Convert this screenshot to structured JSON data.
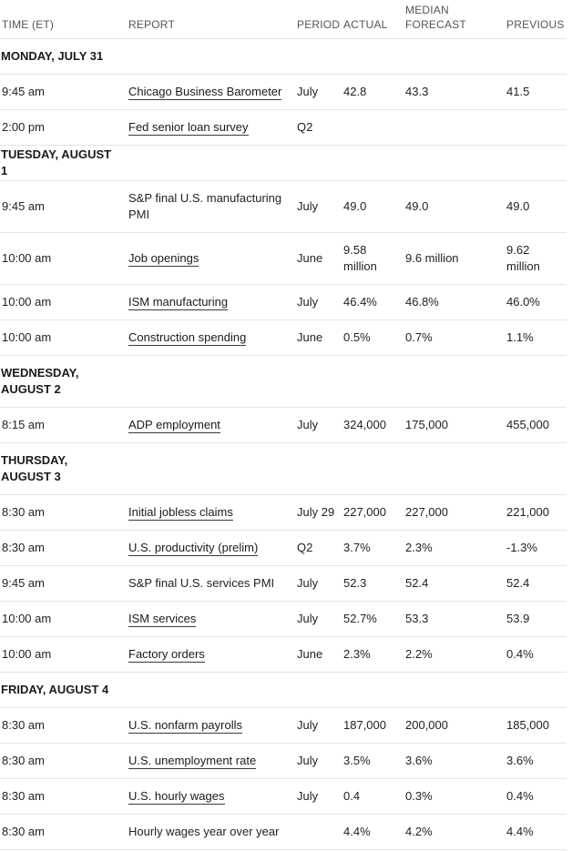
{
  "headers": {
    "time": "TIME (ET)",
    "report": "REPORT",
    "period": "PERIOD",
    "actual": "ACTUAL",
    "median_line1": "MEDIAN",
    "median_line2": "FORECAST",
    "previous": "PREVIOUS"
  },
  "days": {
    "mon": "MONDAY, JULY 31",
    "tue": "TUESDAY, AUGUST 1",
    "wed": "WEDNESDAY, AUGUST 2",
    "thu": "THURSDAY, AUGUST 3",
    "fri": "FRIDAY, AUGUST 4"
  },
  "rows": [
    {
      "time": "9:45 am",
      "report": "Chicago Business Barometer",
      "period": "July",
      "actual": "42.8",
      "median": "43.3",
      "previous": "41.5"
    },
    {
      "time": "2:00 pm",
      "report": "Fed senior loan survey",
      "period": "Q2",
      "actual": "",
      "median": "",
      "previous": ""
    },
    {
      "time": "9:45 am",
      "report": "S&P final U.S. manufacturing PMI",
      "period": "July",
      "actual": "49.0",
      "median": "49.0",
      "previous": "49.0"
    },
    {
      "time": "10:00 am",
      "report": "Job openings",
      "period": "June",
      "actual": "9.58 million",
      "median": "9.6 million",
      "previous": "9.62 million"
    },
    {
      "time": "10:00 am",
      "report": "ISM manufacturing",
      "period": "July",
      "actual": "46.4%",
      "median": "46.8%",
      "previous": "46.0%"
    },
    {
      "time": "10:00 am",
      "report": "Construction spending",
      "period": "June",
      "actual": "0.5%",
      "median": "0.7%",
      "previous": "1.1%"
    },
    {
      "time": "8:15 am",
      "report": "ADP employment",
      "period": "July",
      "actual": "324,000",
      "median": "175,000",
      "previous": "455,000"
    },
    {
      "time": "8:30 am",
      "report": "Initial jobless claims",
      "period": "July 29",
      "actual": "227,000",
      "median": "227,000",
      "previous": "221,000"
    },
    {
      "time": "8:30 am",
      "report": "U.S. productivity (prelim)",
      "period": "Q2",
      "actual": "3.7%",
      "median": "2.3%",
      "previous": "-1.3%"
    },
    {
      "time": "9:45 am",
      "report": "S&P final U.S. services PMI",
      "period": "July",
      "actual": "52.3",
      "median": "52.4",
      "previous": "52.4"
    },
    {
      "time": "10:00 am",
      "report": "ISM services",
      "period": "July",
      "actual": "52.7%",
      "median": "53.3",
      "previous": "53.9"
    },
    {
      "time": "10:00 am",
      "report": "Factory orders",
      "period": "June",
      "actual": "2.3%",
      "median": "2.2%",
      "previous": "0.4%"
    },
    {
      "time": "8:30 am",
      "report": "U.S. nonfarm payrolls",
      "period": "July",
      "actual": "187,000",
      "median": "200,000",
      "previous": "185,000"
    },
    {
      "time": "8:30 am",
      "report": "U.S. unemployment rate",
      "period": "July",
      "actual": "3.5%",
      "median": "3.6%",
      "previous": "3.6%"
    },
    {
      "time": "8:30 am",
      "report": "U.S. hourly wages",
      "period": "July",
      "actual": "0.4",
      "median": "0.3%",
      "previous": "0.4%"
    },
    {
      "time": "8:30 am",
      "report": "Hourly wages year over year",
      "period": "",
      "actual": "4.4%",
      "median": "4.2%",
      "previous": "4.4%"
    }
  ]
}
